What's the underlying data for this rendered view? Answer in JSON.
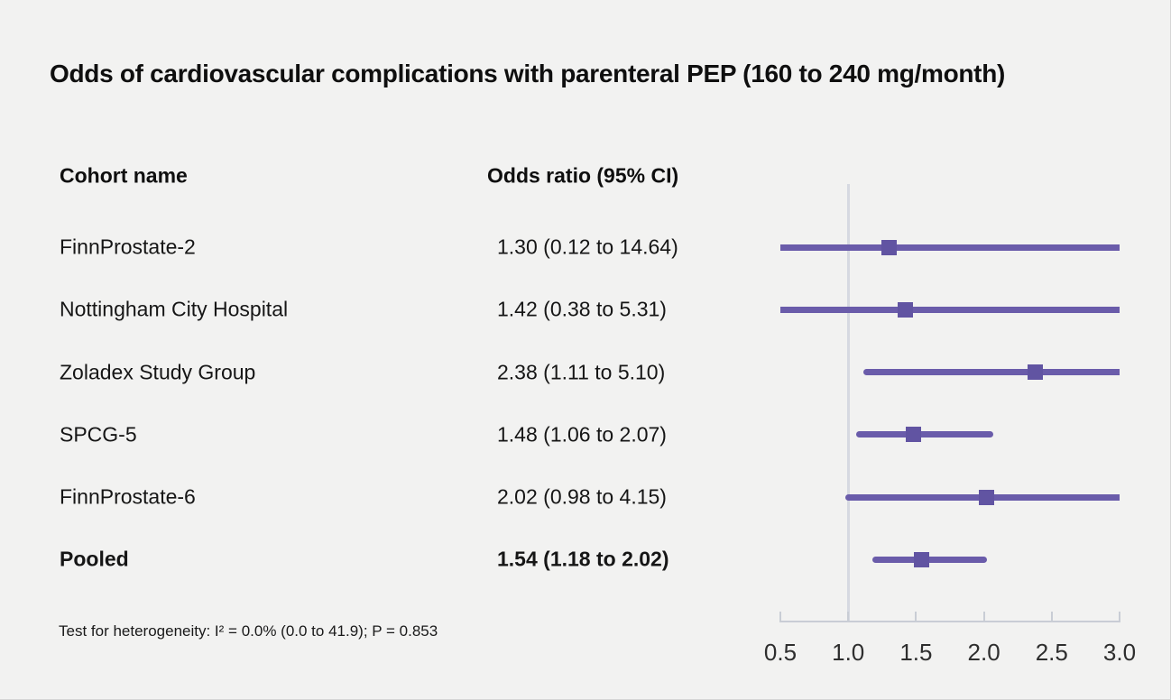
{
  "title": "Odds of cardiovascular complications with parenteral PEP (160 to 240 mg/month)",
  "table": {
    "col1_header": "Cohort name",
    "col2_header": "Odds ratio (95% CI)",
    "rows": [
      {
        "cohort": "FinnProstate-2",
        "or_text": "1.30 (0.12 to 14.64)",
        "bold": false
      },
      {
        "cohort": "Nottingham City Hospital",
        "or_text": "1.42 (0.38 to 5.31)",
        "bold": false
      },
      {
        "cohort": "Zoladex Study Group",
        "or_text": "2.38 (1.11 to 5.10)",
        "bold": false
      },
      {
        "cohort": "SPCG-5",
        "or_text": "1.48 (1.06 to 2.07)",
        "bold": false
      },
      {
        "cohort": "FinnProstate-6",
        "or_text": "2.02 (0.98 to 4.15)",
        "bold": false
      },
      {
        "cohort": "Pooled",
        "or_text": "1.54 (1.18 to 2.02)",
        "bold": true
      }
    ]
  },
  "footnote": "Test for heterogeneity: I² = 0.0% (0.0 to 41.9); P = 0.853",
  "chart_data": {
    "type": "forest",
    "orientation": "horizontal",
    "title": "Odds of cardiovascular complications with parenteral PEP (160 to 240 mg/month)",
    "x_axis": {
      "min": 0.5,
      "max": 3.0,
      "ticks": [
        0.5,
        1.0,
        1.5,
        2.0,
        2.5,
        3.0
      ],
      "tick_labels": [
        "0.5",
        "1.0",
        "1.5",
        "2.0",
        "2.5",
        "3.0"
      ],
      "reference_line": 1.0,
      "grid": false
    },
    "series": [
      {
        "name": "FinnProstate-2",
        "estimate": 1.3,
        "ci_low": 0.12,
        "ci_high": 14.64,
        "pooled": false
      },
      {
        "name": "Nottingham City Hospital",
        "estimate": 1.42,
        "ci_low": 0.38,
        "ci_high": 5.31,
        "pooled": false
      },
      {
        "name": "Zoladex Study Group",
        "estimate": 2.38,
        "ci_low": 1.11,
        "ci_high": 5.1,
        "pooled": false
      },
      {
        "name": "SPCG-5",
        "estimate": 1.48,
        "ci_low": 1.06,
        "ci_high": 2.07,
        "pooled": false
      },
      {
        "name": "FinnProstate-6",
        "estimate": 2.02,
        "ci_low": 0.98,
        "ci_high": 4.15,
        "pooled": false
      },
      {
        "name": "Pooled",
        "estimate": 1.54,
        "ci_low": 1.18,
        "ci_high": 2.02,
        "pooled": true
      }
    ],
    "heterogeneity": "Test for heterogeneity: I² = 0.0% (0.0 to 41.9); P = 0.853",
    "colors": {
      "ci_line": "#6a5caa",
      "marker": "#6154a2",
      "reference_line": "#d6d9e1",
      "axis": "#c9cdd5",
      "axis_label": "#2e2e2e",
      "background": "#f2f2f1",
      "text": "#111111"
    }
  }
}
